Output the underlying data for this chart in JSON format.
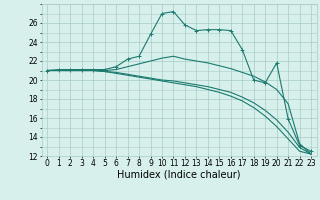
{
  "title": "",
  "xlabel": "Humidex (Indice chaleur)",
  "x": [
    0,
    1,
    2,
    3,
    4,
    5,
    6,
    7,
    8,
    9,
    10,
    11,
    12,
    13,
    14,
    15,
    16,
    17,
    18,
    19,
    20,
    21,
    22,
    23
  ],
  "series": [
    [
      21.0,
      21.1,
      21.1,
      21.1,
      21.1,
      21.1,
      21.4,
      22.2,
      22.5,
      24.8,
      27.0,
      27.2,
      25.8,
      25.2,
      25.3,
      25.3,
      25.2,
      23.2,
      20.0,
      19.7,
      21.8,
      15.9,
      13.1,
      12.5
    ],
    [
      21.0,
      21.0,
      21.0,
      21.0,
      21.0,
      21.0,
      21.1,
      21.4,
      21.7,
      22.0,
      22.3,
      22.5,
      22.2,
      22.0,
      21.8,
      21.5,
      21.2,
      20.8,
      20.4,
      19.8,
      19.0,
      17.5,
      13.3,
      12.2
    ],
    [
      21.0,
      21.0,
      21.0,
      21.0,
      21.0,
      20.9,
      20.8,
      20.6,
      20.4,
      20.2,
      20.0,
      19.9,
      19.7,
      19.5,
      19.3,
      19.0,
      18.7,
      18.2,
      17.6,
      16.8,
      15.8,
      14.5,
      12.9,
      12.2
    ],
    [
      21.0,
      21.0,
      21.0,
      21.0,
      21.0,
      20.9,
      20.7,
      20.5,
      20.3,
      20.1,
      19.9,
      19.7,
      19.5,
      19.3,
      19.0,
      18.7,
      18.3,
      17.8,
      17.1,
      16.2,
      15.1,
      13.8,
      12.5,
      12.2
    ]
  ],
  "line_color": "#1a7a6e",
  "marker": "+",
  "marker_series": [
    0
  ],
  "ylim": [
    12,
    28
  ],
  "yticks": [
    12,
    14,
    16,
    18,
    20,
    22,
    24,
    26
  ],
  "xticks": [
    0,
    1,
    2,
    3,
    4,
    5,
    6,
    7,
    8,
    9,
    10,
    11,
    12,
    13,
    14,
    15,
    16,
    17,
    18,
    19,
    20,
    21,
    22,
    23
  ],
  "bg_color": "#d8f0ec",
  "grid_color": "#a8ccc8",
  "tick_fontsize": 5.5,
  "label_fontsize": 7.0
}
